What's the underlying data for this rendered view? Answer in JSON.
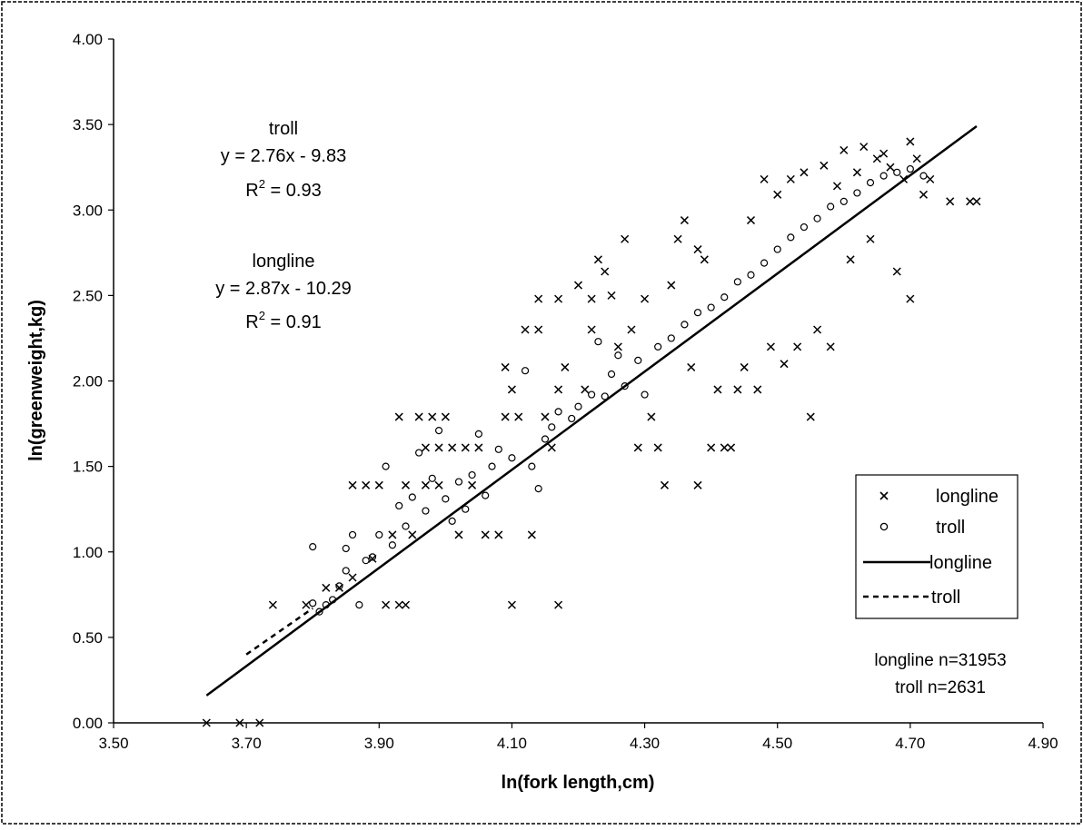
{
  "chart_data": {
    "type": "scatter",
    "xlabel": "ln(fork length,cm)",
    "ylabel": "ln(greenweight,kg)",
    "xlim": [
      3.5,
      4.9
    ],
    "ylim": [
      0,
      4
    ],
    "x_ticks": [
      "3.50",
      "3.70",
      "3.90",
      "4.10",
      "4.30",
      "4.50",
      "4.70",
      "4.90"
    ],
    "y_ticks": [
      "0.00",
      "0.50",
      "1.00",
      "1.50",
      "2.00",
      "2.50",
      "3.00",
      "3.50",
      "4.00"
    ],
    "grid": false,
    "legend_position": "right",
    "series": [
      {
        "name": "longline",
        "kind": "points",
        "marker": "x",
        "points": [
          [
            3.64,
            0.0
          ],
          [
            3.69,
            0.0
          ],
          [
            3.72,
            0.0
          ],
          [
            3.74,
            0.69
          ],
          [
            3.79,
            0.69
          ],
          [
            3.82,
            0.79
          ],
          [
            3.84,
            0.79
          ],
          [
            3.86,
            0.85
          ],
          [
            3.86,
            1.39
          ],
          [
            3.88,
            1.39
          ],
          [
            3.89,
            0.96
          ],
          [
            3.9,
            1.39
          ],
          [
            3.91,
            0.69
          ],
          [
            3.92,
            1.1
          ],
          [
            3.93,
            0.69
          ],
          [
            3.93,
            1.79
          ],
          [
            3.94,
            0.69
          ],
          [
            3.94,
            1.39
          ],
          [
            3.95,
            1.1
          ],
          [
            3.96,
            1.79
          ],
          [
            3.97,
            1.39
          ],
          [
            3.97,
            1.61
          ],
          [
            3.98,
            1.79
          ],
          [
            3.99,
            1.39
          ],
          [
            3.99,
            1.61
          ],
          [
            4.0,
            1.79
          ],
          [
            4.01,
            1.61
          ],
          [
            4.02,
            1.1
          ],
          [
            4.03,
            1.61
          ],
          [
            4.04,
            1.39
          ],
          [
            4.05,
            1.61
          ],
          [
            4.06,
            1.1
          ],
          [
            4.08,
            1.1
          ],
          [
            4.09,
            2.08
          ],
          [
            4.09,
            1.79
          ],
          [
            4.1,
            1.95
          ],
          [
            4.1,
            0.69
          ],
          [
            4.11,
            1.79
          ],
          [
            4.12,
            2.3
          ],
          [
            4.13,
            1.1
          ],
          [
            4.14,
            2.48
          ],
          [
            4.14,
            2.3
          ],
          [
            4.15,
            1.79
          ],
          [
            4.16,
            1.61
          ],
          [
            4.17,
            2.48
          ],
          [
            4.17,
            0.69
          ],
          [
            4.17,
            1.95
          ],
          [
            4.18,
            2.08
          ],
          [
            4.2,
            2.56
          ],
          [
            4.21,
            1.95
          ],
          [
            4.22,
            2.48
          ],
          [
            4.22,
            2.3
          ],
          [
            4.23,
            2.71
          ],
          [
            4.24,
            2.64
          ],
          [
            4.25,
            2.5
          ],
          [
            4.26,
            2.2
          ],
          [
            4.27,
            2.83
          ],
          [
            4.28,
            2.3
          ],
          [
            4.29,
            1.61
          ],
          [
            4.3,
            2.48
          ],
          [
            4.31,
            1.79
          ],
          [
            4.32,
            1.61
          ],
          [
            4.33,
            1.39
          ],
          [
            4.34,
            2.56
          ],
          [
            4.35,
            2.83
          ],
          [
            4.36,
            2.94
          ],
          [
            4.37,
            2.08
          ],
          [
            4.38,
            1.39
          ],
          [
            4.38,
            2.77
          ],
          [
            4.39,
            2.71
          ],
          [
            4.4,
            1.61
          ],
          [
            4.41,
            1.95
          ],
          [
            4.42,
            1.61
          ],
          [
            4.43,
            1.61
          ],
          [
            4.44,
            1.95
          ],
          [
            4.45,
            2.08
          ],
          [
            4.46,
            2.94
          ],
          [
            4.47,
            1.95
          ],
          [
            4.48,
            3.18
          ],
          [
            4.49,
            2.2
          ],
          [
            4.5,
            3.09
          ],
          [
            4.51,
            2.1
          ],
          [
            4.52,
            3.18
          ],
          [
            4.53,
            2.2
          ],
          [
            4.54,
            3.22
          ],
          [
            4.55,
            1.79
          ],
          [
            4.56,
            2.3
          ],
          [
            4.57,
            3.26
          ],
          [
            4.58,
            2.2
          ],
          [
            4.59,
            3.14
          ],
          [
            4.6,
            3.35
          ],
          [
            4.61,
            2.71
          ],
          [
            4.62,
            3.22
          ],
          [
            4.63,
            3.37
          ],
          [
            4.64,
            2.83
          ],
          [
            4.65,
            3.3
          ],
          [
            4.66,
            3.33
          ],
          [
            4.67,
            3.25
          ],
          [
            4.68,
            2.64
          ],
          [
            4.69,
            3.18
          ],
          [
            4.7,
            3.4
          ],
          [
            4.7,
            2.48
          ],
          [
            4.71,
            3.3
          ],
          [
            4.72,
            3.09
          ],
          [
            4.73,
            3.18
          ],
          [
            4.76,
            3.05
          ],
          [
            4.79,
            3.05
          ],
          [
            4.8,
            3.05
          ]
        ]
      },
      {
        "name": "troll",
        "kind": "points",
        "marker": "o",
        "points": [
          [
            3.8,
            1.03
          ],
          [
            3.8,
            0.7
          ],
          [
            3.81,
            0.65
          ],
          [
            3.82,
            0.69
          ],
          [
            3.83,
            0.72
          ],
          [
            3.84,
            0.8
          ],
          [
            3.85,
            1.02
          ],
          [
            3.85,
            0.89
          ],
          [
            3.86,
            1.1
          ],
          [
            3.87,
            0.69
          ],
          [
            3.88,
            0.95
          ],
          [
            3.89,
            0.97
          ],
          [
            3.9,
            1.1
          ],
          [
            3.91,
            1.5
          ],
          [
            3.92,
            1.04
          ],
          [
            3.93,
            1.27
          ],
          [
            3.94,
            1.15
          ],
          [
            3.95,
            1.32
          ],
          [
            3.96,
            1.58
          ],
          [
            3.97,
            1.24
          ],
          [
            3.98,
            1.43
          ],
          [
            3.99,
            1.71
          ],
          [
            4.0,
            1.31
          ],
          [
            4.01,
            1.18
          ],
          [
            4.02,
            1.41
          ],
          [
            4.03,
            1.25
          ],
          [
            4.04,
            1.45
          ],
          [
            4.05,
            1.69
          ],
          [
            4.06,
            1.33
          ],
          [
            4.07,
            1.5
          ],
          [
            4.08,
            1.6
          ],
          [
            4.1,
            1.55
          ],
          [
            4.12,
            2.06
          ],
          [
            4.13,
            1.5
          ],
          [
            4.14,
            1.37
          ],
          [
            4.15,
            1.66
          ],
          [
            4.16,
            1.73
          ],
          [
            4.17,
            1.82
          ],
          [
            4.19,
            1.78
          ],
          [
            4.2,
            1.85
          ],
          [
            4.22,
            1.92
          ],
          [
            4.23,
            2.23
          ],
          [
            4.24,
            1.91
          ],
          [
            4.25,
            2.04
          ],
          [
            4.26,
            2.15
          ],
          [
            4.27,
            1.97
          ],
          [
            4.29,
            2.12
          ],
          [
            4.3,
            1.92
          ],
          [
            4.32,
            2.2
          ],
          [
            4.34,
            2.25
          ],
          [
            4.36,
            2.33
          ],
          [
            4.38,
            2.4
          ],
          [
            4.4,
            2.43
          ],
          [
            4.42,
            2.49
          ],
          [
            4.44,
            2.58
          ],
          [
            4.46,
            2.62
          ],
          [
            4.48,
            2.69
          ],
          [
            4.5,
            2.77
          ],
          [
            4.52,
            2.84
          ],
          [
            4.54,
            2.9
          ],
          [
            4.56,
            2.95
          ],
          [
            4.58,
            3.02
          ],
          [
            4.6,
            3.05
          ],
          [
            4.62,
            3.1
          ],
          [
            4.64,
            3.16
          ],
          [
            4.66,
            3.2
          ],
          [
            4.68,
            3.22
          ],
          [
            4.7,
            3.24
          ],
          [
            4.72,
            3.2
          ]
        ]
      },
      {
        "name": "longline",
        "kind": "line",
        "style": "solid",
        "points": [
          [
            3.64,
            0.16
          ],
          [
            4.8,
            3.49
          ]
        ]
      },
      {
        "name": "troll",
        "kind": "line",
        "style": "dashed",
        "points": [
          [
            3.7,
            0.4
          ],
          [
            3.8,
            0.67
          ]
        ]
      }
    ],
    "annotations": {
      "troll_title": "troll",
      "troll_equation": "y = 2.76x - 9.83",
      "troll_r2_prefix": "R",
      "troll_r2_suffix": " = 0.93",
      "longline_title": "longline",
      "longline_equation": "y = 2.87x - 10.29",
      "longline_r2_prefix": "R",
      "longline_r2_suffix": " = 0.91",
      "r2_superscript": "2",
      "n_longline": "longline n=31953",
      "n_troll": "troll n=2631"
    },
    "legend": [
      {
        "label": "longline",
        "symbol": "x"
      },
      {
        "label": "troll",
        "symbol": "o"
      },
      {
        "label": "longline",
        "symbol": "solid-line"
      },
      {
        "label": "troll",
        "symbol": "dashed-line"
      }
    ]
  }
}
